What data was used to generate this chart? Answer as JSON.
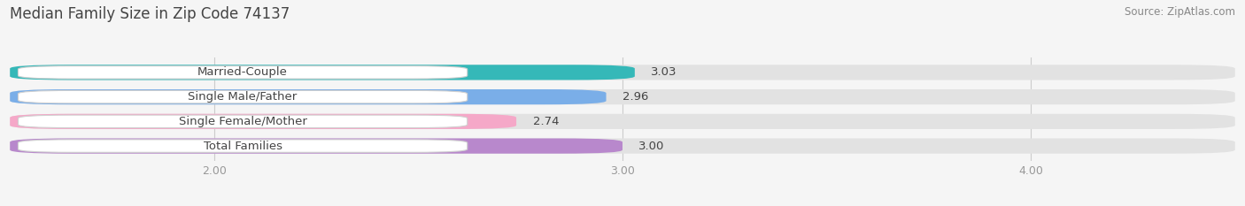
{
  "title": "Median Family Size in Zip Code 74137",
  "source": "Source: ZipAtlas.com",
  "categories": [
    "Married-Couple",
    "Single Male/Father",
    "Single Female/Mother",
    "Total Families"
  ],
  "values": [
    3.03,
    2.96,
    2.74,
    3.0
  ],
  "bar_colors": [
    "#35b8b8",
    "#7aaee8",
    "#f5a8c8",
    "#b888cc"
  ],
  "bg_color": "#f0f0f0",
  "fig_bg": "#f5f5f5",
  "xlim_min": 1.5,
  "xlim_max": 4.5,
  "xticks": [
    2.0,
    3.0,
    4.0
  ],
  "xtick_labels": [
    "2.00",
    "3.00",
    "4.00"
  ],
  "bar_height": 0.62,
  "bar_gap": 0.38,
  "title_fontsize": 12,
  "label_fontsize": 9.5,
  "value_fontsize": 9.5,
  "tick_fontsize": 9,
  "source_fontsize": 8.5
}
